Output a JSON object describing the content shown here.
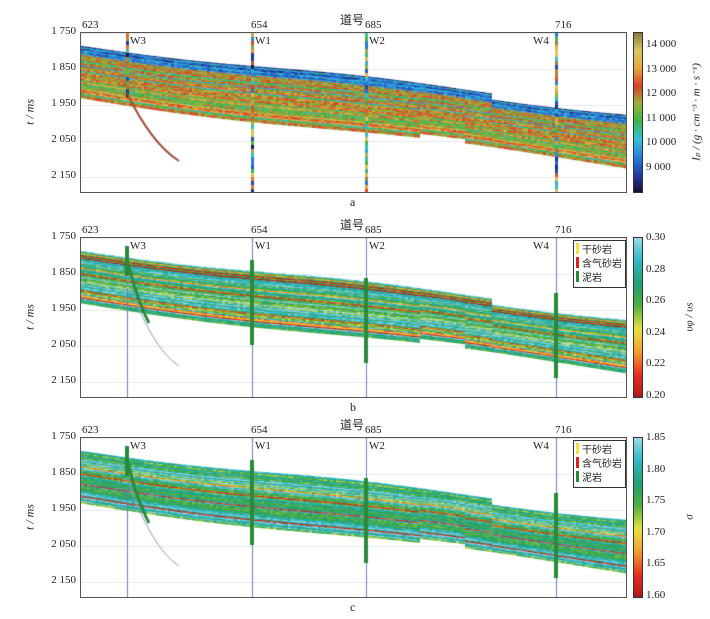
{
  "chart_data": [
    {
      "type": "heatmap",
      "panel_label": "a",
      "xlabel": "道号",
      "ylabel": "t / ms",
      "x_ticks": [
        623,
        654,
        685,
        716
      ],
      "y_ticks": [
        "1 750",
        "1 850",
        "1 950",
        "2 050",
        "2 150"
      ],
      "wells": [
        "W3",
        "W1",
        "W2",
        "W4"
      ],
      "colorbar": {
        "label": "Iₚ / (g · cm⁻³ · m · s⁻¹)",
        "range": [
          8500,
          14700
        ],
        "ticks": [
          "14 000",
          "13 000",
          "12 000",
          "11 000",
          "10 000",
          "9 000"
        ],
        "colormap": [
          "#1a1030",
          "#1f3fa8",
          "#2a7fd8",
          "#38c1d8",
          "#3cb44a",
          "#9bb33a",
          "#d8402a",
          "#e8a83a",
          "#d8c860",
          "#8a7a40"
        ]
      }
    },
    {
      "type": "heatmap",
      "panel_label": "b",
      "xlabel": "道号",
      "ylabel": "t / ms",
      "x_ticks": [
        623,
        654,
        685,
        716
      ],
      "y_ticks": [
        "1 750",
        "1 850",
        "1 950",
        "2 050",
        "2 150"
      ],
      "wells": [
        "W3",
        "W1",
        "W2",
        "W4"
      ],
      "legend": [
        {
          "label": "干砂岩",
          "color": "#f0e040"
        },
        {
          "label": "含气砂岩",
          "color": "#e02020"
        },
        {
          "label": "泥岩",
          "color": "#2a8a3a"
        }
      ],
      "colorbar": {
        "label": "υφ / υs",
        "range": [
          0.2,
          0.3
        ],
        "ticks": [
          "0.30",
          "0.28",
          "0.26",
          "0.24",
          "0.22",
          "0.20"
        ],
        "colormap": [
          "#b01818",
          "#e83020",
          "#f0a030",
          "#e8e040",
          "#50b040",
          "#20a070",
          "#30b8c8",
          "#9ad8e8"
        ]
      }
    },
    {
      "type": "heatmap",
      "panel_label": "c",
      "xlabel": "道号",
      "ylabel": "t / ms",
      "x_ticks": [
        623,
        654,
        685,
        716
      ],
      "y_ticks": [
        "1 750",
        "1 850",
        "1 950",
        "2 050",
        "2 150"
      ],
      "wells": [
        "W3",
        "W1",
        "W2",
        "W4"
      ],
      "legend": [
        {
          "label": "干砂岩",
          "color": "#f0e040"
        },
        {
          "label": "含气砂岩",
          "color": "#e02020"
        },
        {
          "label": "泥岩",
          "color": "#2a8a3a"
        }
      ],
      "colorbar": {
        "label": "σ",
        "range": [
          1.6,
          1.86
        ],
        "ticks": [
          "1.85",
          "1.80",
          "1.75",
          "1.70",
          "1.65",
          "1.60"
        ],
        "colormap": [
          "#b01818",
          "#e83020",
          "#f0a030",
          "#e8e040",
          "#50b040",
          "#20a070",
          "#30b8c8",
          "#9ad8e8"
        ]
      }
    }
  ]
}
